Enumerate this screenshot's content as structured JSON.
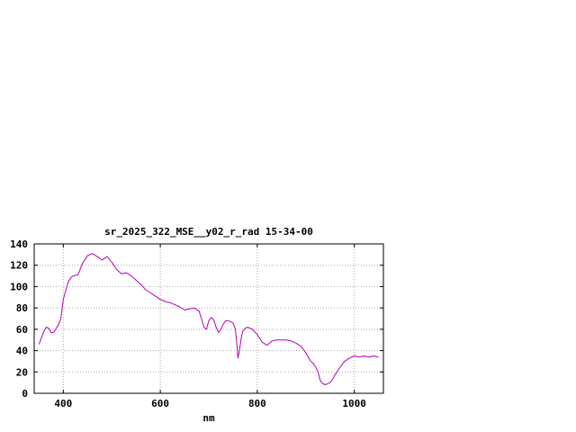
{
  "chart_data": {
    "type": "line",
    "title": "sr_2025_322_MSE__y02_r_rad 15-34-00",
    "xlabel": "nm",
    "ylabel": "",
    "xlim": [
      340,
      1060
    ],
    "ylim": [
      0,
      140
    ],
    "x_ticks": [
      400,
      600,
      800,
      1000
    ],
    "y_ticks": [
      0,
      20,
      40,
      60,
      80,
      100,
      120,
      140
    ],
    "grid": true,
    "legend": "none",
    "line_color": "#b400b4",
    "grid_color": "#aaaaaa",
    "axis_color": "#000000",
    "series": [
      {
        "name": "sr_2025_322_MSE__y02_r_rad",
        "x": [
          350,
          355,
          360,
          365,
          370,
          375,
          380,
          390,
          395,
          400,
          410,
          415,
          420,
          430,
          440,
          450,
          460,
          470,
          480,
          490,
          500,
          510,
          520,
          530,
          540,
          550,
          560,
          570,
          580,
          590,
          600,
          610,
          620,
          630,
          640,
          650,
          660,
          670,
          680,
          685,
          690,
          695,
          700,
          705,
          710,
          715,
          720,
          725,
          730,
          735,
          740,
          750,
          755,
          758,
          760,
          763,
          767,
          770,
          775,
          780,
          790,
          800,
          810,
          820,
          825,
          830,
          840,
          850,
          860,
          870,
          880,
          890,
          900,
          910,
          915,
          920,
          925,
          930,
          935,
          940,
          945,
          950,
          955,
          960,
          970,
          980,
          990,
          1000,
          1010,
          1020,
          1030,
          1040,
          1050
        ],
        "y": [
          46,
          52,
          58,
          62,
          61,
          57,
          57,
          64,
          70,
          88,
          104,
          108,
          110,
          111,
          122,
          129,
          131,
          128,
          125,
          128,
          123,
          116,
          112,
          113,
          110,
          106,
          102,
          97,
          94,
          91,
          88,
          86,
          85,
          83,
          81,
          78,
          79,
          80,
          77,
          70,
          62,
          60,
          68,
          71,
          69,
          62,
          57,
          60,
          65,
          68,
          68,
          66,
          60,
          45,
          33,
          40,
          52,
          58,
          61,
          62,
          60,
          55,
          48,
          45,
          47,
          49,
          50,
          50,
          50,
          49,
          47,
          44,
          38,
          30,
          28,
          25,
          20,
          12,
          9,
          8,
          9,
          10,
          13,
          17,
          24,
          30,
          33,
          35,
          34,
          35,
          34,
          35,
          34
        ]
      }
    ]
  }
}
